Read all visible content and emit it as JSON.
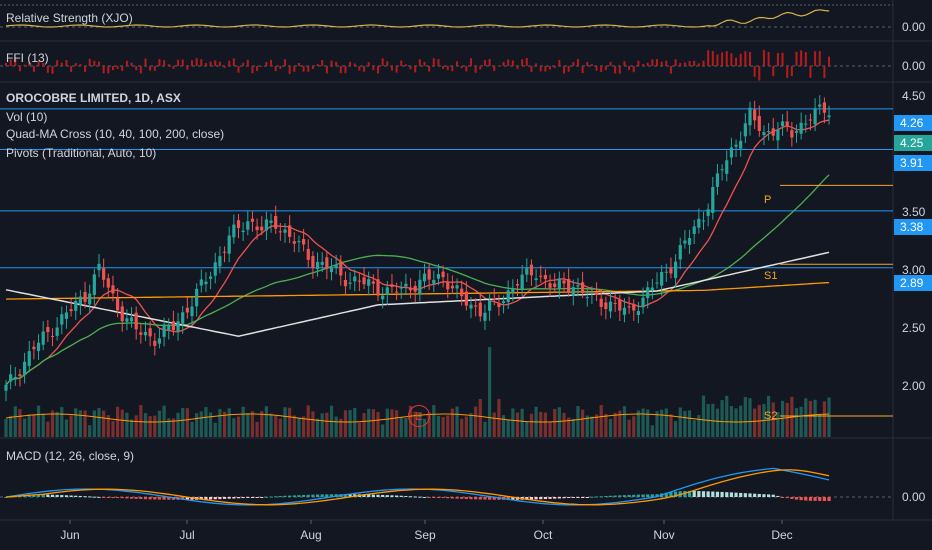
{
  "panes": {
    "rs": {
      "label": "Relative Strength (XJO)",
      "tick": "0.00"
    },
    "ffi": {
      "label": "FFI (13)",
      "tick": "0.00"
    },
    "main": {
      "title": "OROCOBRE LIMITED, 1D, ASX",
      "indicators": [
        "Vol (10)",
        "Quad-MA Cross (10, 40, 100, 200, close)",
        "Pivots (Traditional, Auto, 10)"
      ],
      "ticks": [
        "4.50",
        "3.50",
        "3.00",
        "2.50",
        "2.00"
      ],
      "badges": [
        {
          "text": "4.26",
          "color": "#2196f3"
        },
        {
          "text": "4.25",
          "color": "#26a69a"
        },
        {
          "text": "3.91",
          "color": "#2196f3"
        },
        {
          "text": "3.38",
          "color": "#2196f3"
        },
        {
          "text": "2.89",
          "color": "#2196f3"
        }
      ],
      "pivots": [
        "P",
        "S1",
        "S2"
      ],
      "event": "E"
    },
    "macd": {
      "label": "MACD (12, 26, close, 9)",
      "tick": "0.00"
    }
  },
  "xaxis": [
    "Jun",
    "Jul",
    "Aug",
    "Sep",
    "Oct",
    "Nov",
    "Dec"
  ],
  "colors": {
    "up": "#26a69a",
    "down": "#ef5350",
    "hline": "#2196f3",
    "ma10": "#ef5350",
    "ma40": "#4caf50",
    "ma100": "#ff9800",
    "ma200": "#e0e0e0",
    "pivot": "#f5a623",
    "macd": "#2196f3",
    "signal": "#ff9800",
    "rs": "#d4b14a"
  },
  "chart_data": {
    "type": "candlestick",
    "symbol": "OROCOBRE LIMITED",
    "interval": "1D",
    "exchange": "ASX",
    "ylim": [
      1.6,
      4.6
    ],
    "horizontal_levels": [
      4.26,
      3.91,
      3.38,
      2.89
    ],
    "last_close": 4.25,
    "pivot_levels": {
      "P": 3.6,
      "S1": 2.92,
      "S2": 1.75
    },
    "months": [
      "Jun",
      "Jul",
      "Aug",
      "Sep",
      "Oct",
      "Nov",
      "Dec"
    ],
    "close_anchors": [
      [
        0,
        1.85
      ],
      [
        6,
        2.2
      ],
      [
        12,
        2.45
      ],
      [
        17,
        2.65
      ],
      [
        20,
        2.88
      ],
      [
        24,
        2.55
      ],
      [
        28,
        2.35
      ],
      [
        32,
        2.28
      ],
      [
        36,
        2.38
      ],
      [
        40,
        2.6
      ],
      [
        44,
        2.85
      ],
      [
        48,
        3.15
      ],
      [
        52,
        3.3
      ],
      [
        55,
        3.22
      ],
      [
        58,
        3.28
      ],
      [
        62,
        3.12
      ],
      [
        66,
        2.95
      ],
      [
        70,
        2.88
      ],
      [
        74,
        2.78
      ],
      [
        78,
        2.75
      ],
      [
        82,
        2.68
      ],
      [
        86,
        2.72
      ],
      [
        90,
        2.78
      ],
      [
        94,
        2.82
      ],
      [
        98,
        2.62
      ],
      [
        102,
        2.52
      ],
      [
        106,
        2.58
      ],
      [
        110,
        2.78
      ],
      [
        114,
        2.85
      ],
      [
        118,
        2.72
      ],
      [
        122,
        2.75
      ],
      [
        126,
        2.62
      ],
      [
        130,
        2.58
      ],
      [
        134,
        2.5
      ],
      [
        138,
        2.68
      ],
      [
        142,
        2.85
      ],
      [
        146,
        3.1
      ],
      [
        150,
        3.35
      ],
      [
        154,
        3.75
      ],
      [
        158,
        4.05
      ],
      [
        160,
        4.2
      ],
      [
        163,
        4.05
      ],
      [
        166,
        4.1
      ],
      [
        169,
        4.05
      ],
      [
        173,
        4.2
      ],
      [
        176,
        4.25
      ]
    ],
    "volume_spike_index": 104
  }
}
